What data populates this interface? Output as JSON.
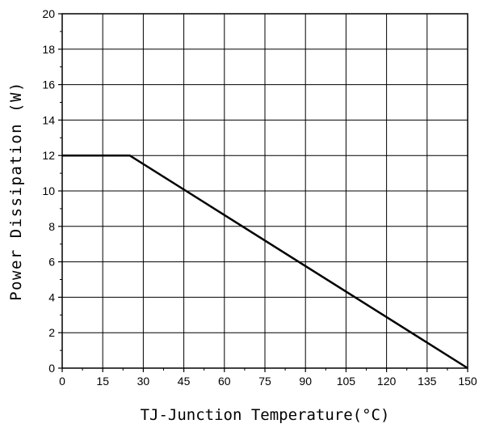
{
  "chart_data": {
    "type": "line",
    "xlabel": "TJ-Junction Temperature(°C)",
    "ylabel": "Power Dissipation (W)",
    "xlim": [
      0,
      150
    ],
    "ylim": [
      0,
      20
    ],
    "x_ticks": [
      0,
      15,
      30,
      45,
      60,
      75,
      90,
      105,
      120,
      135,
      150
    ],
    "y_ticks": [
      0,
      2,
      4,
      6,
      8,
      10,
      12,
      14,
      16,
      18,
      20
    ],
    "grid": true,
    "series": [
      {
        "x": [
          0,
          25,
          150
        ],
        "y": [
          12,
          12,
          0
        ],
        "color": "#000000"
      }
    ]
  }
}
